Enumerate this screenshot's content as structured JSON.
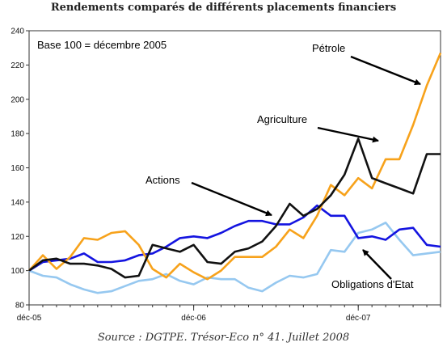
{
  "title": "Rendements comparés de différents placements financiers",
  "source": "Source : DGTPE. Trésor-Eco n° 41. Juillet 2008",
  "chart_data": {
    "type": "line",
    "base_note": "Base 100 = décembre 2005",
    "ylim": [
      80,
      240
    ],
    "yticks": [
      80,
      100,
      120,
      140,
      160,
      180,
      200,
      220,
      240
    ],
    "x_count": 31,
    "xticks": [
      {
        "i": 0,
        "label": "déc-05"
      },
      {
        "i": 12,
        "label": "déc-06"
      },
      {
        "i": 24,
        "label": "déc-07"
      }
    ],
    "grid": false,
    "series": [
      {
        "name": "Pétrole",
        "color": "#F7A21B",
        "values": [
          100,
          109,
          101,
          108,
          119,
          118,
          122,
          123,
          115,
          101,
          96,
          104,
          99,
          95,
          100,
          108,
          108,
          108,
          114,
          124,
          119,
          132,
          150,
          144,
          154,
          148,
          165,
          165,
          185,
          208,
          227
        ]
      },
      {
        "name": "Agriculture",
        "color": "#111111",
        "values": [
          100,
          106,
          107,
          104,
          104,
          103,
          101,
          96,
          97,
          115,
          113,
          111,
          115,
          105,
          104,
          111,
          113,
          117,
          126,
          139,
          132,
          136,
          144,
          156,
          177,
          154,
          151,
          148,
          145,
          168,
          168
        ]
      },
      {
        "name": "Actions",
        "color": "#1414E0",
        "values": [
          100,
          105,
          106,
          107,
          110,
          105,
          105,
          106,
          109,
          110,
          114,
          119,
          120,
          119,
          122,
          126,
          129,
          129,
          127,
          127,
          131,
          138,
          132,
          132,
          119,
          120,
          118,
          124,
          125,
          115,
          114
        ]
      },
      {
        "name": "Obligations d'Etat",
        "color": "#96C8F0",
        "values": [
          100,
          97,
          96,
          92,
          89,
          87,
          88,
          91,
          94,
          95,
          98,
          94,
          92,
          96,
          95,
          95,
          90,
          88,
          93,
          97,
          96,
          98,
          112,
          111,
          122,
          124,
          128,
          118,
          109,
          110,
          111
        ]
      }
    ],
    "annotations": [
      {
        "text": "Pétrole",
        "series": 0
      },
      {
        "text": "Agriculture",
        "series": 1
      },
      {
        "text": "Actions",
        "series": 2
      },
      {
        "text": "Obligations d'Etat",
        "series": 3
      }
    ]
  }
}
